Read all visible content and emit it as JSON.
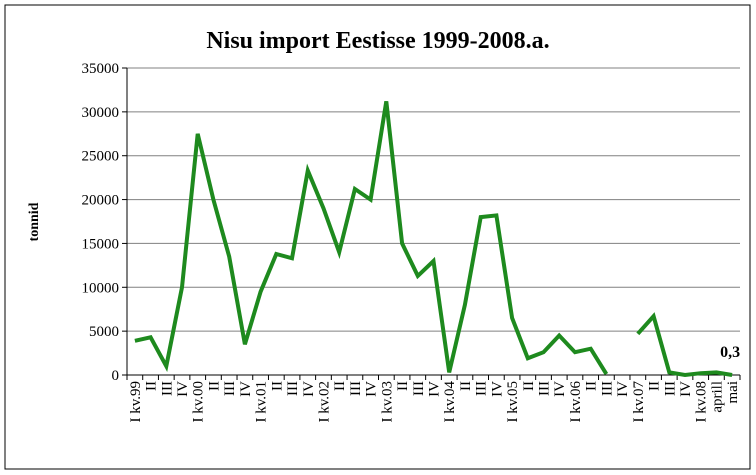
{
  "chart_data": {
    "type": "line",
    "title": "Nisu import Eestisse 1999-2008.a.",
    "y_label": "tonnid",
    "categories": [
      "I kv.99",
      "II",
      "III",
      "IV",
      "I kv.00",
      "II",
      "III",
      "IV",
      "I kv.01",
      "II",
      "III",
      "IV",
      "I kv.02",
      "II",
      "III",
      "IV",
      "I kv.03",
      "II",
      "III",
      "IV",
      "I kv.04",
      "II",
      "III",
      "IV",
      "I kv.05",
      "II",
      "III",
      "IV",
      "I kv.06",
      "II",
      "III",
      "IV",
      "I kv.07",
      "II",
      "III",
      "IV",
      "I kv.08",
      "aprill",
      "mai"
    ],
    "series": [
      {
        "name": "Nisu import",
        "color": "#1e8a1e",
        "values": [
          3900,
          4300,
          1000,
          10000,
          27500,
          20000,
          13500,
          3500,
          9500,
          13800,
          13300,
          23300,
          19000,
          14000,
          21200,
          20000,
          31200,
          15000,
          11300,
          13000,
          300,
          8000,
          18000,
          18200,
          6500,
          1900,
          2600,
          4500,
          2600,
          3000,
          100,
          null,
          4700,
          6700,
          300,
          0,
          200,
          300,
          0.3
        ],
        "value_labels": [
          null,
          null,
          null,
          null,
          null,
          null,
          null,
          null,
          null,
          null,
          null,
          null,
          null,
          null,
          null,
          null,
          null,
          null,
          null,
          null,
          null,
          null,
          null,
          null,
          null,
          null,
          null,
          null,
          null,
          null,
          null,
          null,
          null,
          null,
          null,
          null,
          null,
          null,
          "0,3"
        ]
      }
    ],
    "ylim": [
      0,
      35000
    ],
    "yticks": [
      0,
      5000,
      10000,
      15000,
      20000,
      25000,
      30000,
      35000
    ],
    "grid": true
  }
}
